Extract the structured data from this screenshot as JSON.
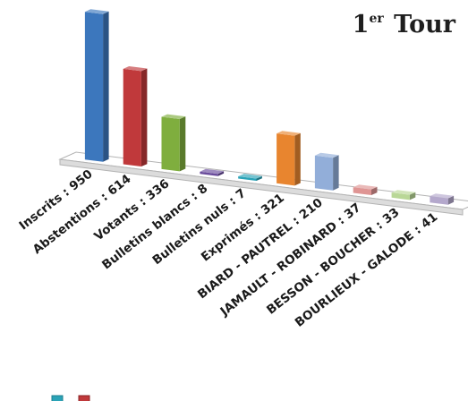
{
  "title": {
    "main": "1",
    "sup": "er",
    "rest": "Tour"
  },
  "chart_data": {
    "type": "bar",
    "title": "1er Tour",
    "categories": [
      "Inscrits : 950",
      "Abstentions : 614",
      "Votants : 336",
      "Bulletins blancs : 8",
      "Bulletins nuls : 7",
      "Exprimés : 321",
      "BIARD - PAUTREL : 210",
      "JAMAULT - ROBINARD : 37",
      "BESSON - BOUCHER : 33",
      "BOURLIEUX - GALODE : 41"
    ],
    "values": [
      950,
      614,
      336,
      8,
      7,
      321,
      210,
      37,
      33,
      41
    ],
    "colors": [
      "#3c77bd",
      "#c0393b",
      "#7fae3e",
      "#6a4c9c",
      "#2aa3b7",
      "#e8852f",
      "#92aed9",
      "#df9594",
      "#b9d797",
      "#b4a8cc"
    ],
    "ylim": [
      0,
      950
    ],
    "grid": false,
    "legend": "bottom-left"
  }
}
